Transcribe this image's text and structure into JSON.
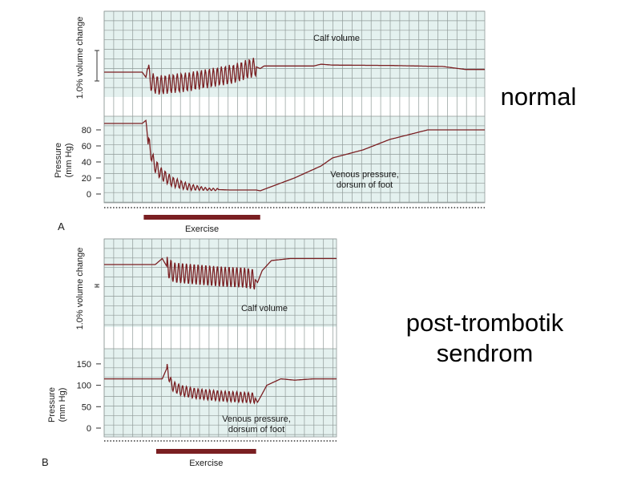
{
  "annotations": {
    "normal": "normal",
    "post_line1": "post-trombotik",
    "post_line2": "sendrom"
  },
  "colors": {
    "grid_bg": "#e4f1ef",
    "grid_line": "#8f9a98",
    "trace": "#7a1f22",
    "exercise_bar": "#7a1f22",
    "text": "#1a1a1a"
  },
  "chart_data": [
    {
      "type": "line",
      "panel": "A",
      "volume_ylabel": "1.0% volume change",
      "volume_series_label": "Calf volume",
      "pressure_ylabel": [
        "Pressure",
        "(mm Hg)"
      ],
      "pressure_series_label": [
        "Venous pressure,",
        "dorsum of foot"
      ],
      "pressure_ticks": [
        0,
        20,
        40,
        60,
        80
      ],
      "pressure_ylim": [
        0,
        90
      ],
      "exercise_label": "Exercise",
      "volume_oscillation_amplitude": 0.55,
      "pressure_oscillation_amplitude": 10,
      "volume_series": {
        "t": [
          0,
          0.1,
          0.11,
          0.115,
          0.12,
          0.14,
          0.18,
          0.22,
          0.26,
          0.3,
          0.34,
          0.38,
          0.4,
          0.41,
          0.42,
          0.5,
          0.55,
          0.57,
          0.6,
          0.75,
          0.89,
          0.95,
          1.0
        ],
        "v": [
          0,
          0,
          -0.3,
          0.4,
          -0.5,
          -0.75,
          -0.65,
          -0.55,
          -0.4,
          -0.25,
          -0.1,
          0.2,
          0.3,
          0.2,
          0.35,
          0.35,
          0.35,
          0.45,
          0.4,
          0.38,
          0.32,
          0.15,
          0.15
        ],
        "oscillation_window": [
          0.115,
          0.4
        ]
      },
      "pressure_series": {
        "t": [
          0,
          0.1,
          0.11,
          0.115,
          0.12,
          0.13,
          0.15,
          0.18,
          0.22,
          0.27,
          0.33,
          0.4,
          0.41,
          0.5,
          0.57,
          0.6,
          0.68,
          0.75,
          0.85,
          0.9,
          1.0
        ],
        "p": [
          88,
          88,
          92,
          65,
          58,
          38,
          25,
          15,
          9,
          6,
          5,
          5,
          4,
          20,
          35,
          45,
          55,
          68,
          80,
          80,
          80
        ],
        "oscillation_window": [
          0.115,
          0.3
        ]
      },
      "exercise_window": [
        0.104,
        0.41
      ]
    },
    {
      "type": "line",
      "panel": "B",
      "volume_ylabel": "1.0% volume change",
      "volume_series_label": "Calf volume",
      "pressure_ylabel": [
        "Pressure",
        "(mm Hg)"
      ],
      "pressure_series_label": [
        "Venous pressure,",
        "dorsum of foot"
      ],
      "pressure_ticks": [
        0,
        50,
        100,
        150
      ],
      "pressure_ylim": [
        0,
        160
      ],
      "exercise_label": "Exercise",
      "volume_oscillation_amplitude": 0.5,
      "pressure_oscillation_amplitude": 12,
      "volume_series": {
        "t": [
          0,
          0.22,
          0.25,
          0.27,
          0.3,
          0.4,
          0.5,
          0.6,
          0.65,
          0.66,
          0.68,
          0.72,
          0.8,
          1.0
        ],
        "v": [
          0.6,
          0.6,
          0.9,
          0.5,
          0.2,
          0.1,
          0.0,
          -0.05,
          -0.15,
          -0.3,
          0.3,
          0.8,
          0.9,
          0.9
        ],
        "oscillation_window": [
          0.27,
          0.65
        ]
      },
      "pressure_series": {
        "t": [
          0,
          0.25,
          0.27,
          0.29,
          0.33,
          0.4,
          0.5,
          0.6,
          0.65,
          0.66,
          0.7,
          0.76,
          0.82,
          0.9,
          1.0
        ],
        "p": [
          115,
          115,
          140,
          100,
          88,
          80,
          75,
          72,
          70,
          60,
          100,
          115,
          112,
          115,
          115
        ],
        "oscillation_window": [
          0.27,
          0.65
        ]
      },
      "exercise_window": [
        0.224,
        0.654
      ]
    }
  ]
}
